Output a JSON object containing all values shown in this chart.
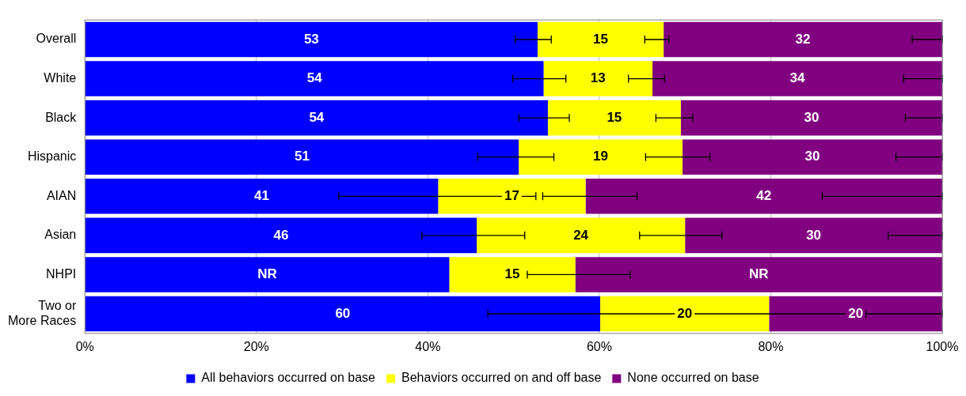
{
  "chart_data": {
    "type": "bar",
    "orientation": "horizontal",
    "stacked": true,
    "categories": [
      "Overall",
      "White",
      "Black",
      "Hispanic",
      "AIAN",
      "Asian",
      "NHPI",
      "Two or More Races"
    ],
    "series": [
      {
        "name": "All behaviors occurred on base",
        "color": "#0000ff",
        "values": [
          52.8,
          53.5,
          54.0,
          50.6,
          41.2,
          45.7,
          42.5,
          60.1
        ],
        "value_labels": [
          "53",
          "54",
          "54",
          "51",
          "41",
          "46",
          "NR",
          "60"
        ],
        "errors": [
          [
            50.2,
            54.4
          ],
          [
            49.9,
            56.1
          ],
          [
            50.6,
            56.5
          ],
          [
            45.8,
            54.7
          ],
          [
            29.6,
            52.6
          ],
          [
            39.3,
            51.3
          ],
          null,
          [
            47.0,
            70.3
          ]
        ]
      },
      {
        "name": "Behaviors occurred on and off base",
        "color": "#ffff00",
        "values": [
          14.7,
          12.7,
          15.5,
          19.1,
          17.2,
          24.3,
          14.7,
          19.7
        ],
        "value_labels": [
          "15",
          "13",
          "15",
          "19",
          "17",
          "24",
          "15",
          "20"
        ],
        "errors": [
          [
            65.3,
            68.1
          ],
          [
            63.4,
            67.6
          ],
          [
            66.6,
            70.9
          ],
          [
            65.4,
            72.9
          ],
          [
            53.4,
            64.4
          ],
          [
            64.7,
            74.3
          ],
          [
            51.6,
            63.6
          ],
          [
            70.5,
            90.9
          ]
        ]
      },
      {
        "name": "None occurred on base",
        "color": "#800080",
        "values": [
          32.5,
          33.8,
          30.5,
          30.3,
          41.6,
          30.0,
          42.8,
          20.2
        ],
        "value_labels": [
          "32",
          "34",
          "30",
          "30",
          "42",
          "30",
          "NR",
          "20"
        ],
        "errors": [
          [
            96.5,
            100
          ],
          [
            95.5,
            100
          ],
          [
            95.7,
            100
          ],
          [
            94.6,
            100
          ],
          [
            86,
            100
          ],
          [
            93.7,
            100
          ],
          null,
          [
            91.1,
            100
          ]
        ]
      }
    ],
    "xlim": [
      0,
      100
    ],
    "xticks": [
      {
        "value": 0,
        "label": "0%"
      },
      {
        "value": 20,
        "label": "20%"
      },
      {
        "value": 40,
        "label": "40%"
      },
      {
        "value": 60,
        "label": "60%"
      },
      {
        "value": 80,
        "label": "80%"
      },
      {
        "value": 100,
        "label": "100%"
      }
    ],
    "grid": "x",
    "legend": "bottom"
  }
}
